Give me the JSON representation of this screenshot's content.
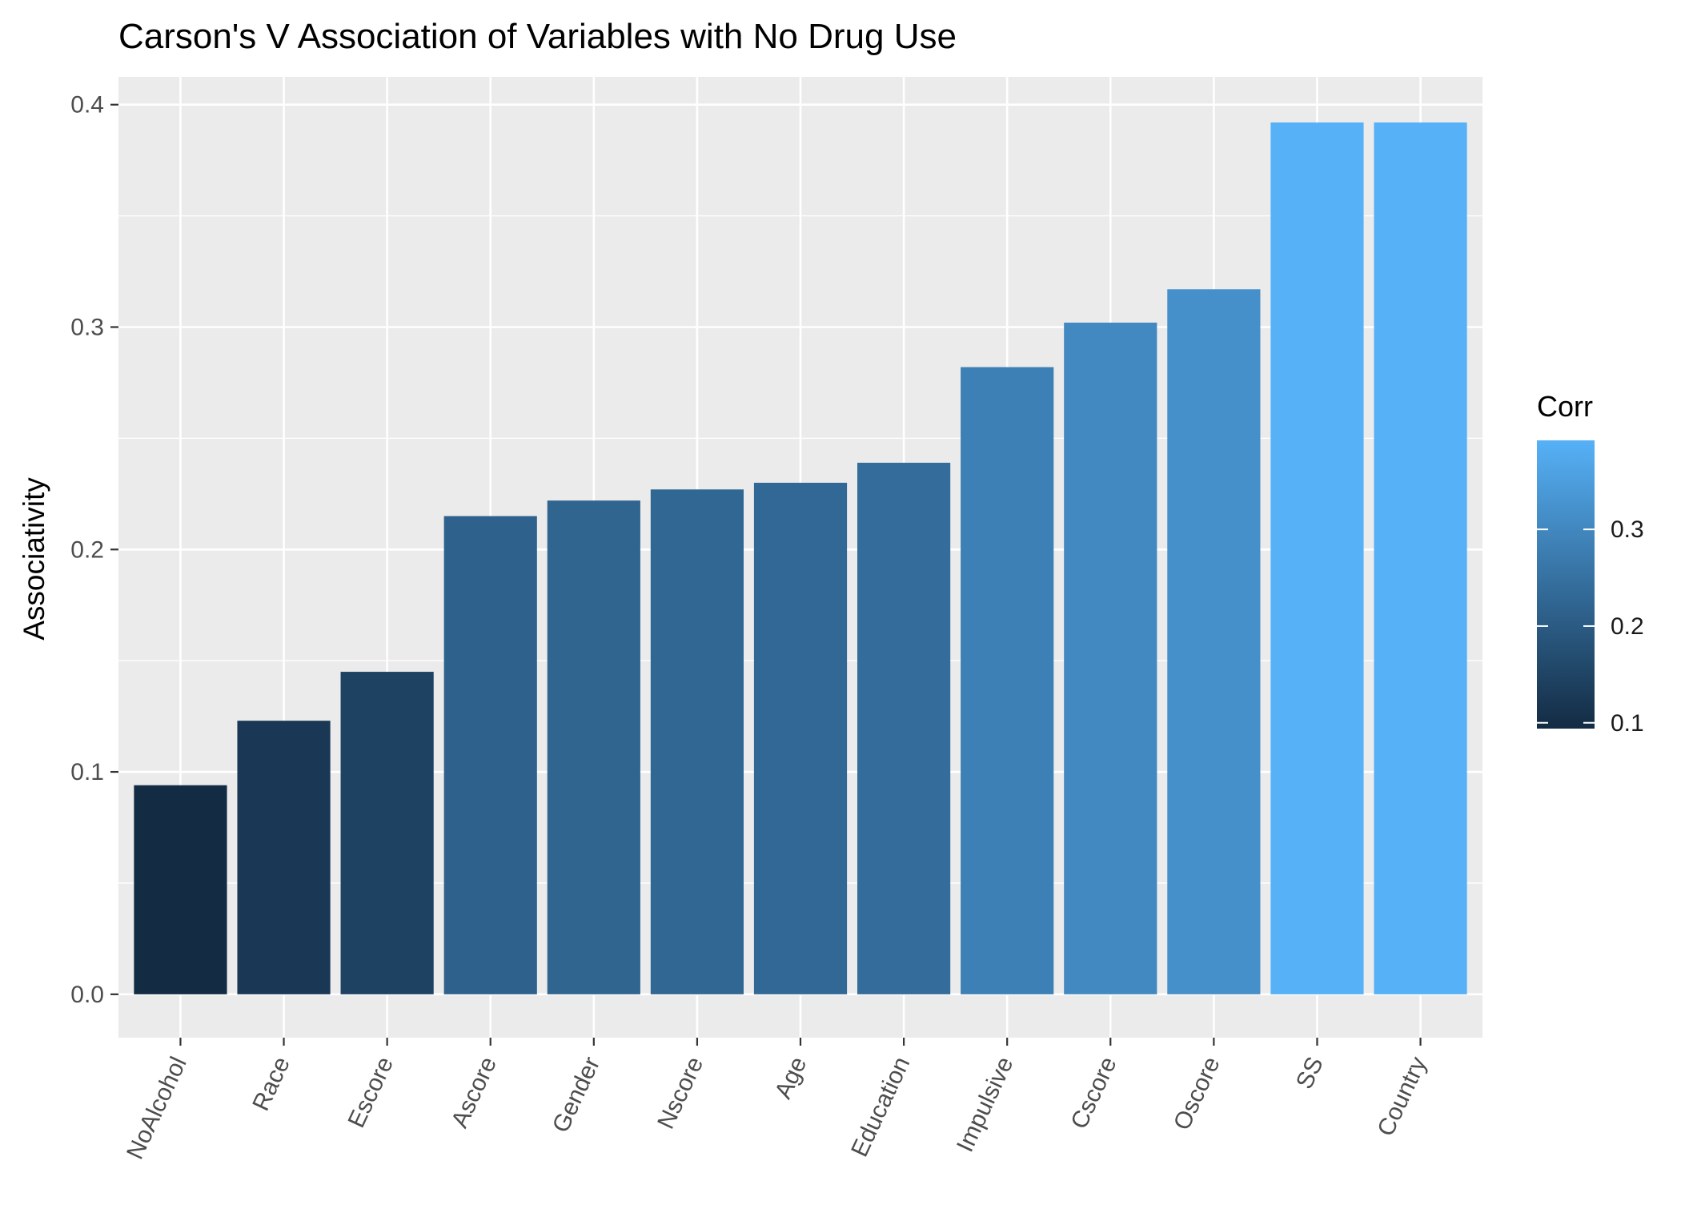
{
  "chart_data": {
    "type": "bar",
    "title": "Carson's V Association of Variables with No Drug Use",
    "xlabel": "",
    "ylabel": "Associativity",
    "ylim": [
      -0.0195,
      0.4125
    ],
    "yticks": [
      0.0,
      0.1,
      0.2,
      0.3,
      0.4
    ],
    "ytick_labels": [
      "0.0",
      "0.1",
      "0.2",
      "0.3",
      "0.4"
    ],
    "grid": true,
    "categories": [
      "NoAlcohol",
      "Race",
      "Escore",
      "Ascore",
      "Gender",
      "Nscore",
      "Age",
      "Education",
      "Impulsive",
      "Cscore",
      "Oscore",
      "SS",
      "Country"
    ],
    "values": [
      0.094,
      0.123,
      0.145,
      0.215,
      0.222,
      0.227,
      0.23,
      0.239,
      0.282,
      0.302,
      0.317,
      0.392,
      0.392
    ],
    "fill_by": "Corr",
    "legend": {
      "title": "Corr",
      "position": "right",
      "type": "colorbar",
      "range": [
        0.094,
        0.392
      ],
      "ticks": [
        0.1,
        0.2,
        0.3
      ],
      "tick_labels": [
        "0.1",
        "0.2",
        "0.3"
      ],
      "colors": {
        "low": "#132B43",
        "high": "#56B1F7"
      }
    },
    "colors": {
      "panel_bg": "#EBEBEB",
      "grid": "#FFFFFF"
    }
  }
}
